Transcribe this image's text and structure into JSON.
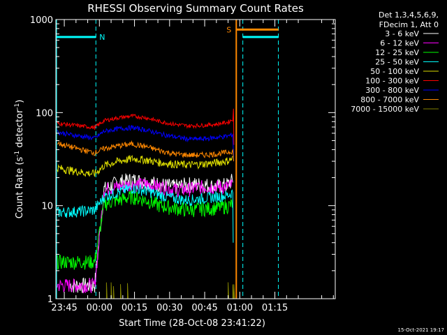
{
  "chart_data": {
    "type": "line",
    "title": "RHESSI Observing Summary Count Rates",
    "xlabel": "Start Time (28-Oct-08 23:41:22)",
    "ylabel_main": "Count Rate (s",
    "ylabel_sup1": "-1",
    "ylabel_mid": " detector",
    "ylabel_sup2": "-1",
    "ylabel_end": ")",
    "yscale": "log",
    "ylim": [
      1,
      1000
    ],
    "xlim_minutes": [
      -18.6,
      100.8
    ],
    "x_unit": "minutes since 00:00",
    "yticks": [
      {
        "value": 1,
        "label": "1"
      },
      {
        "value": 10,
        "label": "10"
      },
      {
        "value": 100,
        "label": "100"
      },
      {
        "value": 1000,
        "label": "1000"
      }
    ],
    "xticks": [
      {
        "value": -15,
        "label": "23:45"
      },
      {
        "value": 0,
        "label": "00:00"
      },
      {
        "value": 15,
        "label": "00:15"
      },
      {
        "value": 30,
        "label": "00:30"
      },
      {
        "value": 45,
        "label": "00:45"
      },
      {
        "value": 60,
        "label": "01:00"
      },
      {
        "value": 75,
        "label": "01:15"
      }
    ],
    "legend_header": [
      "Det 1,3,4,5,6,9,",
      "FDecim 1, Att 0"
    ],
    "legend_placement": "right",
    "series": [
      {
        "name": "3 - 6 keV",
        "color": "#ffffff",
        "x": [
          -12.5,
          -6,
          -2,
          2,
          8,
          14,
          20,
          26,
          32,
          38,
          44,
          50,
          55,
          57
        ],
        "y": [
          1.4,
          1.4,
          1.4,
          15,
          18,
          19,
          18,
          17,
          16,
          17,
          17,
          16,
          17,
          19
        ]
      },
      {
        "name": "6 - 12 keV",
        "color": "#ff00ff",
        "x": [
          -18,
          -12.5,
          -6,
          -2,
          2,
          8,
          14,
          20,
          26,
          32,
          38,
          44,
          50,
          55,
          57
        ],
        "y": [
          1.4,
          1.4,
          1.4,
          1.4,
          15,
          16,
          17,
          17,
          16,
          15,
          15,
          16,
          16,
          16,
          17
        ]
      },
      {
        "name": "12 - 25 keV",
        "color": "#00ff00",
        "x": [
          -18,
          -12.5,
          -6,
          -2,
          2,
          8,
          14,
          20,
          26,
          32,
          38,
          44,
          50,
          55,
          57
        ],
        "y": [
          2.5,
          2.5,
          2.5,
          2.5,
          10.5,
          11.5,
          12.5,
          11.5,
          10,
          9.5,
          9,
          9.3,
          9.5,
          10,
          10.5
        ]
      },
      {
        "name": "25 - 50 keV",
        "color": "#00ffff",
        "x": [
          -18,
          -12.5,
          -6,
          -2,
          2,
          8,
          14,
          20,
          26,
          32,
          38,
          44,
          50,
          55,
          57
        ],
        "y": [
          8.5,
          8.6,
          8.8,
          9,
          12.5,
          14,
          15.5,
          14.5,
          13,
          12,
          11.5,
          12,
          12.5,
          13,
          14
        ]
      },
      {
        "name": "50 - 100 keV",
        "color": "#dddd00",
        "x": [
          -18,
          -12.5,
          -6,
          -2,
          2,
          8,
          14,
          20,
          26,
          32,
          38,
          44,
          50,
          55,
          57
        ],
        "y": [
          25.5,
          24,
          22.5,
          22,
          27,
          30,
          32,
          31,
          29,
          28,
          27.5,
          28,
          29,
          30.5,
          32
        ]
      },
      {
        "name": "100 - 300 keV",
        "color": "#ff0000",
        "x": [
          -18,
          -12.5,
          -6,
          -2,
          2,
          8,
          14,
          20,
          26,
          32,
          38,
          44,
          50,
          55,
          57
        ],
        "y": [
          77,
          74,
          71,
          69,
          82,
          88,
          92,
          88,
          80,
          75,
          72,
          73,
          75,
          79,
          85
        ]
      },
      {
        "name": "300 - 800 keV",
        "color": "#0000ff",
        "x": [
          -18,
          -12.5,
          -6,
          -2,
          2,
          8,
          14,
          20,
          26,
          32,
          38,
          44,
          50,
          55,
          57
        ],
        "y": [
          62,
          58,
          55,
          53,
          63,
          67,
          69,
          65,
          59,
          55,
          52,
          52,
          54,
          56,
          58
        ]
      },
      {
        "name": "800 - 7000 keV",
        "color": "#ff8800",
        "x": [
          -18,
          -12.5,
          -6,
          -2,
          2,
          8,
          14,
          20,
          26,
          32,
          38,
          44,
          50,
          55,
          57
        ],
        "y": [
          47,
          43,
          39,
          37,
          41,
          44,
          46,
          43,
          39,
          36,
          35,
          35,
          36,
          37.5,
          39
        ]
      },
      {
        "name": "7000 - 15000 keV",
        "color": "#808000",
        "x": [
          3,
          5,
          6,
          9,
          12,
          55,
          57,
          57.5
        ],
        "y": [
          1.35,
          1.3,
          1.35,
          1.3,
          1.3,
          1.3,
          1.35,
          1.3
        ]
      }
    ],
    "flags": {
      "night": {
        "label": "N",
        "color": "#00ffff",
        "level": 650
      },
      "saa": {
        "label": "S",
        "color": "#ff8800",
        "level": 780
      },
      "night_intervals": [
        [
          -18.6,
          -1.5
        ],
        [
          61.3,
          76.5
        ]
      ],
      "saa_intervals": [
        [
          58.5,
          76.5
        ]
      ]
    }
  },
  "footer": {
    "timestamp": "15-Oct-2021 19:17"
  }
}
